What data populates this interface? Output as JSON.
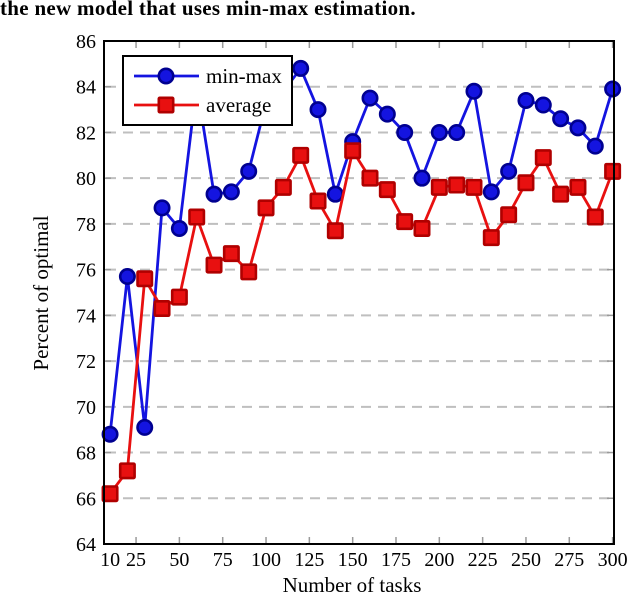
{
  "caption": "the new model that uses min-max estimation.",
  "colors": {
    "minmax_line": "#1414e0",
    "minmax_edge": "#000090",
    "average_line": "#e81010",
    "average_edge": "#b00000",
    "grid": "#bfbfbf",
    "tick": "#9a9a9a",
    "frame": "#000000"
  },
  "chart_data": {
    "type": "line",
    "title": "",
    "xlabel": "Number of tasks",
    "ylabel": "Percent of optimal",
    "x": [
      10,
      20,
      30,
      40,
      50,
      60,
      70,
      80,
      90,
      100,
      110,
      120,
      130,
      140,
      150,
      160,
      170,
      180,
      190,
      200,
      210,
      220,
      230,
      240,
      250,
      260,
      270,
      280,
      290,
      300
    ],
    "series": [
      {
        "name": "min-max",
        "marker": "circle",
        "values": [
          68.8,
          75.7,
          69.1,
          78.7,
          77.8,
          84.1,
          79.3,
          79.4,
          80.3,
          83.3,
          83.8,
          84.8,
          83.0,
          79.3,
          81.6,
          83.5,
          82.8,
          82.0,
          80.0,
          82.0,
          82.0,
          83.8,
          79.4,
          80.3,
          83.4,
          83.2,
          82.6,
          82.2,
          81.4,
          83.9
        ]
      },
      {
        "name": "average",
        "marker": "square",
        "values": [
          66.2,
          67.2,
          75.6,
          74.3,
          74.8,
          78.3,
          76.2,
          76.7,
          75.9,
          78.7,
          79.6,
          81.0,
          79.0,
          77.7,
          81.2,
          80.0,
          79.5,
          78.1,
          77.8,
          79.6,
          79.7,
          79.6,
          77.4,
          78.4,
          79.8,
          80.9,
          79.3,
          79.6,
          78.3,
          80.3
        ]
      }
    ],
    "xticks": [
      10,
      25,
      50,
      75,
      100,
      125,
      150,
      175,
      200,
      225,
      250,
      275,
      300
    ],
    "yticks": [
      64,
      66,
      68,
      70,
      72,
      74,
      76,
      78,
      80,
      82,
      84,
      86
    ],
    "xlim": [
      6.5,
      300.8
    ],
    "ylim": [
      64,
      86
    ],
    "grid": true,
    "legend_position": "top-left"
  }
}
